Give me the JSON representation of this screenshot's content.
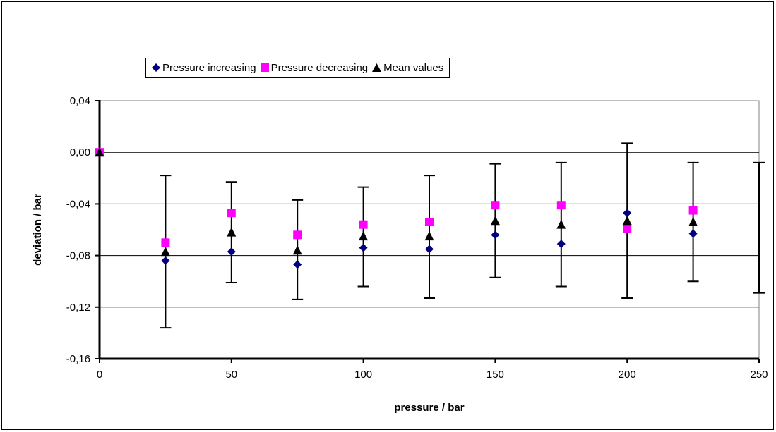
{
  "chart_data": {
    "type": "scatter",
    "xlabel": "pressure / bar",
    "ylabel": "deviation / bar",
    "xlim": [
      0,
      250
    ],
    "ylim": [
      -0.16,
      0.04
    ],
    "x_ticks": [
      0,
      50,
      100,
      150,
      200,
      250
    ],
    "x_tick_labels": [
      "0",
      "50",
      "100",
      "150",
      "200",
      "250"
    ],
    "y_ticks": [
      0.04,
      0.0,
      -0.04,
      -0.08,
      -0.12,
      -0.16
    ],
    "y_tick_labels": [
      "0,04",
      "0,00",
      "-0,04",
      "-0,08",
      "-0,12",
      "-0,16"
    ],
    "grid": "horizontal",
    "legend_position": "top",
    "series": [
      {
        "name": "Pressure increasing",
        "marker": "diamond",
        "color": "#000080",
        "x": [
          0,
          25,
          50,
          75,
          100,
          125,
          150,
          175,
          200,
          225
        ],
        "y": [
          0.0,
          -0.084,
          -0.077,
          -0.087,
          -0.074,
          -0.075,
          -0.064,
          -0.071,
          -0.047,
          -0.063
        ]
      },
      {
        "name": "Pressure decreasing",
        "marker": "square",
        "color": "#ff00ff",
        "x": [
          0,
          25,
          50,
          75,
          100,
          125,
          150,
          175,
          200,
          225
        ],
        "y": [
          0.0,
          -0.07,
          -0.047,
          -0.064,
          -0.056,
          -0.054,
          -0.041,
          -0.041,
          -0.059,
          -0.045
        ]
      },
      {
        "name": "Mean values",
        "marker": "triangle",
        "color": "#000000",
        "x": [
          0,
          25,
          50,
          75,
          100,
          125,
          150,
          175,
          200,
          225
        ],
        "y": [
          0.0,
          -0.077,
          -0.062,
          -0.076,
          -0.065,
          -0.065,
          -0.053,
          -0.056,
          -0.053,
          -0.054
        ],
        "error_bars": [
          [
            0.0,
            0.0
          ],
          [
            -0.136,
            -0.018
          ],
          [
            -0.101,
            -0.023
          ],
          [
            -0.114,
            -0.037
          ],
          [
            -0.104,
            -0.027
          ],
          [
            -0.113,
            -0.018
          ],
          [
            -0.097,
            -0.009
          ],
          [
            -0.104,
            -0.008
          ],
          [
            -0.113,
            0.007
          ],
          [
            -0.1,
            -0.008
          ]
        ]
      }
    ],
    "extra_error_bars": [
      {
        "x": 250,
        "low": -0.109,
        "high": -0.008
      }
    ]
  }
}
